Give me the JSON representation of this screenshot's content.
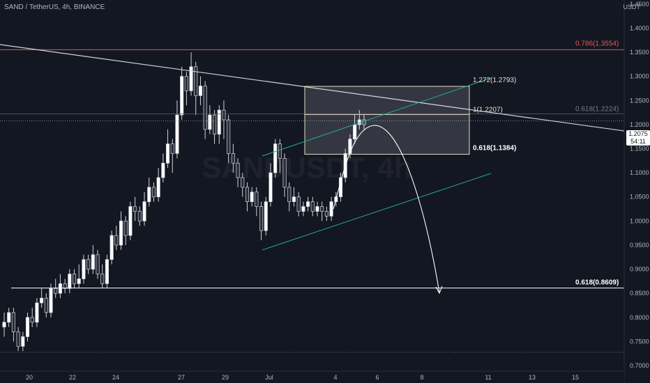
{
  "header": {
    "title": "SAND / TetherUS, 4h, BINANCE"
  },
  "watermark": "SANDUSDT, 4h",
  "price_scale": {
    "unit": "USDT",
    "current_price": "1.2075",
    "countdown": "54:11"
  },
  "colors": {
    "background": "#131722",
    "bull": "#ffffff",
    "bear": "#2a2e39",
    "resistance_red": "#ef5350",
    "channel_green": "#26a69a",
    "fib_box": "#e8dcc2",
    "label": "#d1d4dc"
  },
  "chart_data": {
    "type": "candlestick",
    "symbol": "SAND / TetherUS",
    "timeframe": "4h",
    "exchange": "BINANCE",
    "ylim": [
      0.7,
      1.47
    ],
    "yticks": [
      "1.4500",
      "1.4000",
      "1.3500",
      "1.3000",
      "1.2500",
      "1.2000",
      "1.1500",
      "1.1000",
      "1.0500",
      "1.0000",
      "0.9500",
      "0.9000",
      "0.8500",
      "0.8000",
      "0.7500",
      "0.7000"
    ],
    "xticks": [
      "20",
      "22",
      "24",
      "27",
      "29",
      "Jul",
      "4",
      "6",
      "8",
      "11",
      "13",
      "15"
    ],
    "candles": [
      [
        0.78,
        0.79,
        0.81,
        0.76
      ],
      [
        0.79,
        0.81,
        0.82,
        0.78
      ],
      [
        0.81,
        0.77,
        0.82,
        0.75
      ],
      [
        0.77,
        0.74,
        0.78,
        0.73
      ],
      [
        0.74,
        0.76,
        0.77,
        0.73
      ],
      [
        0.76,
        0.8,
        0.81,
        0.75
      ],
      [
        0.8,
        0.79,
        0.82,
        0.78
      ],
      [
        0.79,
        0.83,
        0.84,
        0.78
      ],
      [
        0.83,
        0.84,
        0.86,
        0.82
      ],
      [
        0.84,
        0.81,
        0.85,
        0.8
      ],
      [
        0.81,
        0.86,
        0.87,
        0.8
      ],
      [
        0.86,
        0.85,
        0.88,
        0.84
      ],
      [
        0.85,
        0.87,
        0.89,
        0.84
      ],
      [
        0.87,
        0.86,
        0.88,
        0.85
      ],
      [
        0.86,
        0.89,
        0.9,
        0.85
      ],
      [
        0.89,
        0.87,
        0.9,
        0.86
      ],
      [
        0.87,
        0.88,
        0.91,
        0.86
      ],
      [
        0.88,
        0.92,
        0.93,
        0.87
      ],
      [
        0.92,
        0.9,
        0.93,
        0.89
      ],
      [
        0.9,
        0.93,
        0.95,
        0.89
      ],
      [
        0.93,
        0.89,
        0.94,
        0.88
      ],
      [
        0.89,
        0.87,
        0.91,
        0.86
      ],
      [
        0.87,
        0.92,
        0.93,
        0.86
      ],
      [
        0.92,
        0.97,
        0.98,
        0.91
      ],
      [
        0.97,
        0.95,
        0.99,
        0.94
      ],
      [
        0.95,
        1.0,
        1.02,
        0.94
      ],
      [
        1.0,
        0.97,
        1.01,
        0.95
      ],
      [
        0.97,
        1.03,
        1.04,
        0.96
      ],
      [
        1.03,
        1.02,
        1.05,
        1.0
      ],
      [
        1.02,
        1.0,
        1.03,
        0.99
      ],
      [
        1.0,
        1.04,
        1.06,
        0.99
      ],
      [
        1.04,
        1.07,
        1.09,
        1.03
      ],
      [
        1.07,
        1.05,
        1.08,
        1.04
      ],
      [
        1.05,
        1.09,
        1.11,
        1.04
      ],
      [
        1.09,
        1.12,
        1.14,
        1.08
      ],
      [
        1.12,
        1.16,
        1.19,
        1.11
      ],
      [
        1.16,
        1.14,
        1.17,
        1.1
      ],
      [
        1.14,
        1.22,
        1.25,
        1.13
      ],
      [
        1.22,
        1.3,
        1.32,
        1.21
      ],
      [
        1.3,
        1.27,
        1.31,
        1.24
      ],
      [
        1.27,
        1.32,
        1.35,
        1.26
      ],
      [
        1.32,
        1.26,
        1.33,
        1.22
      ],
      [
        1.26,
        1.28,
        1.3,
        1.24
      ],
      [
        1.28,
        1.19,
        1.29,
        1.17
      ],
      [
        1.19,
        1.22,
        1.24,
        1.18
      ],
      [
        1.22,
        1.18,
        1.23,
        1.16
      ],
      [
        1.18,
        1.23,
        1.24,
        1.16
      ],
      [
        1.23,
        1.21,
        1.25,
        1.17
      ],
      [
        1.21,
        1.14,
        1.22,
        1.12
      ],
      [
        1.14,
        1.12,
        1.16,
        1.1
      ],
      [
        1.12,
        1.09,
        1.13,
        1.07
      ],
      [
        1.09,
        1.07,
        1.1,
        1.05
      ],
      [
        1.07,
        1.04,
        1.08,
        1.02
      ],
      [
        1.04,
        1.06,
        1.07,
        1.03
      ],
      [
        1.06,
        1.03,
        1.07,
        1.01
      ],
      [
        1.03,
        0.98,
        1.04,
        0.96
      ],
      [
        0.98,
        1.04,
        1.05,
        0.97
      ],
      [
        1.04,
        1.1,
        1.12,
        1.03
      ],
      [
        1.1,
        1.16,
        1.17,
        1.09
      ],
      [
        1.16,
        1.13,
        1.17,
        1.1
      ],
      [
        1.13,
        1.07,
        1.14,
        1.05
      ],
      [
        1.07,
        1.04,
        1.08,
        1.02
      ],
      [
        1.04,
        1.05,
        1.07,
        1.03
      ],
      [
        1.05,
        1.02,
        1.06,
        1.01
      ],
      [
        1.02,
        1.03,
        1.04,
        1.01
      ],
      [
        1.03,
        1.04,
        1.05,
        1.02
      ],
      [
        1.04,
        1.02,
        1.05,
        1.01
      ],
      [
        1.02,
        1.03,
        1.04,
        1.01
      ],
      [
        1.03,
        1.02,
        1.04,
        1.0
      ],
      [
        1.02,
        1.01,
        1.03,
        1.0
      ],
      [
        1.01,
        1.04,
        1.05,
        1.0
      ],
      [
        1.04,
        1.05,
        1.06,
        1.03
      ],
      [
        1.05,
        1.09,
        1.1,
        1.04
      ],
      [
        1.09,
        1.14,
        1.15,
        1.08
      ],
      [
        1.14,
        1.17,
        1.18,
        1.13
      ],
      [
        1.17,
        1.2,
        1.22,
        1.16
      ],
      [
        1.2,
        1.21,
        1.23,
        1.19
      ],
      [
        1.21,
        1.2,
        1.22,
        1.19
      ]
    ],
    "lines": {
      "descending_trendline": {
        "from": [
          "18",
          1.4
        ],
        "to": [
          "12",
          1.2
        ]
      },
      "channel_upper": {
        "from": [
          "Jun 30",
          1.17
        ],
        "to": [
          "Jul 10",
          1.33
        ]
      },
      "channel_lower": {
        "from": [
          "Jun 30",
          0.96
        ],
        "to": [
          "Jul 10",
          1.12
        ]
      },
      "projection_path": {
        "from": [
          "Jul 4",
          1.02
        ],
        "peak": [
          "Jul 6",
          1.23
        ],
        "to": [
          "Jul 8",
          0.86
        ]
      }
    },
    "horizontal_levels": [
      {
        "label": "0.786(1.3554)",
        "value": 1.3554,
        "color": "resistance_red"
      },
      {
        "label": "1.272(1.2793)",
        "value": 1.2793,
        "color": "fib_box"
      },
      {
        "label": "0.618(1.2224)",
        "value": 1.2224,
        "color": "label"
      },
      {
        "label": "1(1.2207)",
        "value": 1.2207,
        "color": "fib_box"
      },
      {
        "label": "0.618(1.1384)",
        "value": 1.1384,
        "color": "label"
      },
      {
        "label": "0.618(0.8609)",
        "value": 0.8609,
        "color": "label"
      }
    ],
    "fib_zone": {
      "top": 1.2793,
      "bottom": 1.1384,
      "from": "Jul 2",
      "to": "Jul 8"
    }
  }
}
